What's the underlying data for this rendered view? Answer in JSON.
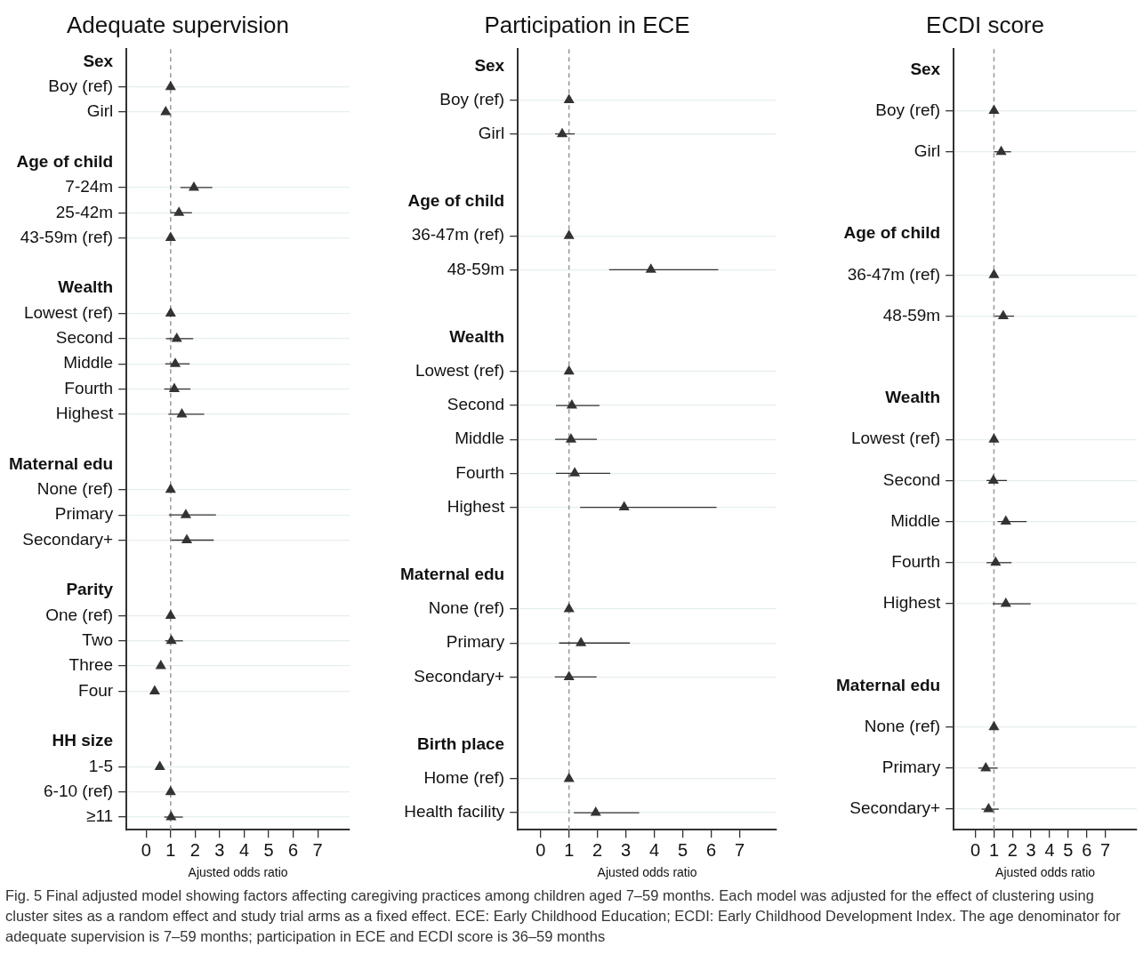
{
  "chart_data": [
    {
      "type": "scatter",
      "orientation": "horizontal",
      "title": "Adequate supervision",
      "xlabel": "Ajusted odds ratio",
      "categories": [
        "Sex",
        "Boy (ref)",
        "Girl",
        null,
        "Age of child",
        "7-24m",
        "25-42m",
        "43-59m (ref)",
        null,
        "Wealth",
        "Lowest (ref)",
        "Second",
        "Middle",
        "Fourth",
        "Highest",
        null,
        "Maternal edu",
        "None (ref)",
        "Primary",
        "Secondary+",
        null,
        "Parity",
        "One (ref)",
        "Two",
        "Three",
        "Four",
        null,
        "HH size",
        "1-5",
        "6-10 (ref)",
        "≥11"
      ],
      "values": [
        null,
        1,
        0.8,
        null,
        null,
        1.95,
        1.34,
        1,
        null,
        null,
        1,
        1.25,
        1.19,
        1.15,
        1.46,
        null,
        null,
        1,
        1.62,
        1.66,
        null,
        null,
        1,
        1.03,
        0.6,
        0.35,
        null,
        null,
        0.56,
        1,
        1.02
      ],
      "errors": [
        null,
        null,
        null,
        null,
        null,
        [
          1.4,
          2.7
        ],
        [
          1.0,
          1.87
        ],
        null,
        null,
        null,
        null,
        [
          0.81,
          1.92
        ],
        [
          0.78,
          1.78
        ],
        [
          0.74,
          1.81
        ],
        [
          0.91,
          2.37
        ],
        null,
        null,
        null,
        [
          0.93,
          2.85
        ],
        [
          1.03,
          2.76
        ],
        null,
        null,
        null,
        [
          0.78,
          1.5
        ],
        null,
        null,
        null,
        null,
        null,
        null,
        [
          0.74,
          1.5
        ]
      ],
      "color": "#333333",
      "marker": "triangle",
      "xlim": [
        -0.8,
        8.3
      ],
      "xticks": [
        0,
        1,
        2,
        3,
        4,
        5,
        6,
        7
      ],
      "grid": "y",
      "ref_lines": [
        {
          "axis": "x",
          "value": 1,
          "line_style": "dashed",
          "color": "#999999"
        }
      ],
      "annotations": [
        "Fig. 5 Final adjusted model showing factors affecting caregiving practices among children aged 7–59 months. Each model was adjusted for the effect of clustering using cluster sites as a random effect and study trial arms as a fixed effect. ECE: Early Childhood Education; ECDI: Early Childhood Development Index. The age denominator for adequate supervision is 7–59 months; participation in ECE and ECDI score is 36–59 months"
      ]
    },
    {
      "type": "scatter",
      "orientation": "horizontal",
      "title": "Participation in ECE",
      "xlabel": "Ajusted odds ratio",
      "categories": [
        "Sex",
        "Boy (ref)",
        "Girl",
        null,
        "Age of child",
        "36-47m (ref)",
        "48-59m",
        null,
        "Wealth",
        "Lowest (ref)",
        "Second",
        "Middle",
        "Fourth",
        "Highest",
        null,
        "Maternal edu",
        "None (ref)",
        "Primary",
        "Secondary+",
        null,
        "Birth place",
        "Home (ref)",
        "Health facility"
      ],
      "values": [
        null,
        1,
        0.76,
        null,
        null,
        1,
        3.88,
        null,
        null,
        1,
        1.1,
        1.07,
        1.2,
        2.94,
        null,
        null,
        1,
        1.42,
        1.0,
        null,
        null,
        1,
        1.94
      ],
      "errors": [
        null,
        null,
        [
          0.51,
          1.2
        ],
        null,
        null,
        null,
        [
          2.41,
          6.25
        ],
        null,
        null,
        null,
        [
          0.54,
          2.07
        ],
        [
          0.51,
          1.98
        ],
        [
          0.54,
          2.45
        ],
        [
          1.39,
          6.19
        ],
        null,
        null,
        null,
        [
          0.65,
          3.14
        ],
        [
          0.5,
          1.97
        ],
        null,
        null,
        null,
        [
          1.17,
          3.47
        ]
      ],
      "color": "#333333",
      "marker": "triangle",
      "xlim": [
        -0.8,
        8.3
      ],
      "xticks": [
        0,
        1,
        2,
        3,
        4,
        5,
        6,
        7
      ],
      "grid": "y",
      "ref_lines": [
        {
          "axis": "x",
          "value": 1,
          "line_style": "dashed",
          "color": "#999999"
        }
      ]
    },
    {
      "type": "scatter",
      "orientation": "horizontal",
      "title": "ECDI score",
      "xlabel": "Ajusted odds ratio",
      "categories": [
        "Sex",
        "Boy (ref)",
        "Girl",
        null,
        "Age of child",
        "36-47m (ref)",
        "48-59m",
        null,
        "Wealth",
        "Lowest (ref)",
        "Second",
        "Middle",
        "Fourth",
        "Highest",
        null,
        "Maternal edu",
        "None (ref)",
        "Primary",
        "Secondary+"
      ],
      "values": [
        null,
        1,
        1.39,
        null,
        null,
        1,
        1.5,
        null,
        null,
        1,
        0.97,
        1.64,
        1.09,
        1.64,
        null,
        null,
        1,
        0.56,
        0.71
      ],
      "errors": [
        null,
        null,
        [
          1.0,
          1.92
        ],
        null,
        null,
        null,
        [
          1.04,
          2.08
        ],
        null,
        null,
        null,
        [
          0.6,
          1.7
        ],
        [
          1.2,
          2.76
        ],
        [
          0.6,
          1.95
        ],
        [
          0.93,
          2.98
        ],
        null,
        null,
        null,
        [
          0.16,
          1.2
        ],
        [
          0.33,
          1.26
        ]
      ],
      "color": "#333333",
      "marker": "triangle",
      "xlim": [
        -1.17,
        8.7
      ],
      "xticks": [
        0,
        1,
        2,
        3,
        4,
        5,
        6,
        7
      ],
      "grid": "y",
      "ref_lines": [
        {
          "axis": "x",
          "value": 1,
          "line_style": "dashed",
          "color": "#999999"
        }
      ]
    }
  ]
}
